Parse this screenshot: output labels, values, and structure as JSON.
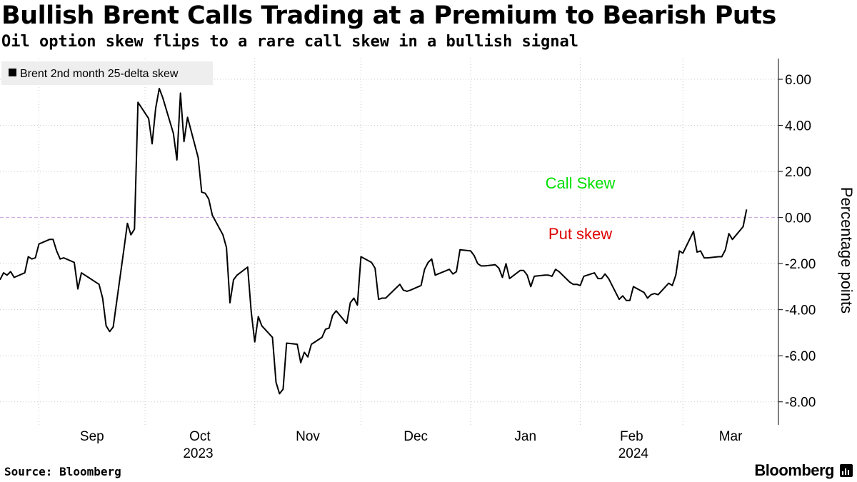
{
  "header": {
    "title": "Bullish Brent Calls Trading at a Premium to Bearish Puts",
    "subtitle": "Oil option skew flips to a rare call skew in a bullish signal"
  },
  "footer": {
    "source": "Source: Bloomberg",
    "brand": "Bloomberg"
  },
  "colors": {
    "line": "#000000",
    "grid": "#c8c8c8",
    "zero_line": "#c9a0dc",
    "call_label": "#00e000",
    "put_label": "#e00000",
    "legend_bg": "#eeeeee"
  },
  "chart_data": {
    "type": "line",
    "title": "Bullish Brent Calls Trading at a Premium to Bearish Puts",
    "subtitle": "Oil option skew flips to a rare call skew in a bullish signal",
    "ylabel": "Percentage points",
    "xlabel": "",
    "legend": "Brent 2nd month 25-delta skew",
    "legend_position": "top-left",
    "y_axis_side": "right",
    "ylim": [
      -9.0,
      6.9
    ],
    "y_ticks": [
      6,
      4,
      2,
      0,
      -2,
      -4,
      -6,
      -8
    ],
    "y_tick_labels": [
      "6.00",
      "4.00",
      "2.00",
      "0.00",
      "-2.00",
      "-4.00",
      "-6.00",
      "-8.00"
    ],
    "grid": true,
    "x_range": [
      "2023-08-21",
      "2024-03-28"
    ],
    "x_tick_labels": [
      {
        "date": "2023-09-01",
        "label": "Sep"
      },
      {
        "date": "2023-10-01",
        "label": "Oct"
      },
      {
        "date": "2023-11-01",
        "label": "Nov"
      },
      {
        "date": "2023-12-01",
        "label": "Dec"
      },
      {
        "date": "2024-01-01",
        "label": "Jan"
      },
      {
        "date": "2024-02-01",
        "label": "Feb"
      },
      {
        "date": "2024-03-01",
        "label": "Mar"
      }
    ],
    "year_labels": [
      {
        "date": "2023-10-16",
        "label": "2023"
      },
      {
        "date": "2024-02-16",
        "label": "2024"
      }
    ],
    "annotations": [
      {
        "text": "Call Skew",
        "date": "2024-02-01",
        "y": 1.5,
        "color": "#00e000"
      },
      {
        "text": "Put skew",
        "date": "2024-02-01",
        "y": -0.7,
        "color": "#e00000"
      }
    ],
    "series": [
      {
        "name": "Brent 2nd month 25-delta skew",
        "points": [
          [
            "2023-08-21",
            -2.7
          ],
          [
            "2023-08-22",
            -2.4
          ],
          [
            "2023-08-23",
            -2.5
          ],
          [
            "2023-08-24",
            -2.35
          ],
          [
            "2023-08-25",
            -2.6
          ],
          [
            "2023-08-28",
            -2.4
          ],
          [
            "2023-08-29",
            -1.7
          ],
          [
            "2023-08-30",
            -1.8
          ],
          [
            "2023-08-31",
            -1.75
          ],
          [
            "2023-09-01",
            -1.15
          ],
          [
            "2023-09-04",
            -0.95
          ],
          [
            "2023-09-05",
            -0.95
          ],
          [
            "2023-09-06",
            -1.45
          ],
          [
            "2023-09-07",
            -1.8
          ],
          [
            "2023-09-08",
            -1.75
          ],
          [
            "2023-09-11",
            -1.95
          ],
          [
            "2023-09-12",
            -3.1
          ],
          [
            "2023-09-13",
            -2.4
          ],
          [
            "2023-09-14",
            -2.5
          ],
          [
            "2023-09-15",
            -2.6
          ],
          [
            "2023-09-18",
            -2.9
          ],
          [
            "2023-09-19",
            -3.5
          ],
          [
            "2023-09-20",
            -4.7
          ],
          [
            "2023-09-21",
            -4.95
          ],
          [
            "2023-09-22",
            -4.75
          ],
          [
            "2023-09-25",
            -1.4
          ],
          [
            "2023-09-26",
            -0.25
          ],
          [
            "2023-09-27",
            -0.75
          ],
          [
            "2023-09-28",
            -0.5
          ],
          [
            "2023-09-29",
            5.0
          ],
          [
            "2023-10-02",
            4.3
          ],
          [
            "2023-10-03",
            3.2
          ],
          [
            "2023-10-04",
            4.75
          ],
          [
            "2023-10-05",
            5.6
          ],
          [
            "2023-10-06",
            5.2
          ],
          [
            "2023-10-09",
            3.65
          ],
          [
            "2023-10-10",
            2.5
          ],
          [
            "2023-10-11",
            5.4
          ],
          [
            "2023-10-12",
            3.3
          ],
          [
            "2023-10-13",
            4.35
          ],
          [
            "2023-10-16",
            2.6
          ],
          [
            "2023-10-17",
            1.1
          ],
          [
            "2023-10-18",
            1.05
          ],
          [
            "2023-10-19",
            0.8
          ],
          [
            "2023-10-20",
            0.1
          ],
          [
            "2023-10-23",
            -0.75
          ],
          [
            "2023-10-24",
            -1.3
          ],
          [
            "2023-10-25",
            -3.7
          ],
          [
            "2023-10-26",
            -2.7
          ],
          [
            "2023-10-27",
            -2.5
          ],
          [
            "2023-10-30",
            -2.15
          ],
          [
            "2023-10-31",
            -4.1
          ],
          [
            "2023-11-01",
            -5.4
          ],
          [
            "2023-11-02",
            -4.3
          ],
          [
            "2023-11-03",
            -4.7
          ],
          [
            "2023-11-06",
            -5.2
          ],
          [
            "2023-11-07",
            -7.15
          ],
          [
            "2023-11-08",
            -7.65
          ],
          [
            "2023-11-09",
            -7.45
          ],
          [
            "2023-11-10",
            -5.45
          ],
          [
            "2023-11-13",
            -5.5
          ],
          [
            "2023-11-14",
            -6.3
          ],
          [
            "2023-11-15",
            -5.85
          ],
          [
            "2023-11-16",
            -6.05
          ],
          [
            "2023-11-17",
            -5.5
          ],
          [
            "2023-11-20",
            -5.2
          ],
          [
            "2023-11-21",
            -4.85
          ],
          [
            "2023-11-22",
            -4.8
          ],
          [
            "2023-11-23",
            -4.25
          ],
          [
            "2023-11-24",
            -4.05
          ],
          [
            "2023-11-27",
            -4.6
          ],
          [
            "2023-11-28",
            -3.7
          ],
          [
            "2023-11-29",
            -3.5
          ],
          [
            "2023-11-30",
            -3.8
          ],
          [
            "2023-12-01",
            -1.7
          ],
          [
            "2023-12-04",
            -1.95
          ],
          [
            "2023-12-05",
            -2.2
          ],
          [
            "2023-12-06",
            -3.55
          ],
          [
            "2023-12-07",
            -3.5
          ],
          [
            "2023-12-08",
            -3.5
          ],
          [
            "2023-12-11",
            -3.05
          ],
          [
            "2023-12-12",
            -2.9
          ],
          [
            "2023-12-13",
            -3.15
          ],
          [
            "2023-12-14",
            -3.2
          ],
          [
            "2023-12-15",
            -3.15
          ],
          [
            "2023-12-18",
            -2.95
          ],
          [
            "2023-12-19",
            -2.25
          ],
          [
            "2023-12-20",
            -1.95
          ],
          [
            "2023-12-21",
            -1.8
          ],
          [
            "2023-12-22",
            -2.5
          ],
          [
            "2023-12-26",
            -2.25
          ],
          [
            "2023-12-27",
            -2.45
          ],
          [
            "2023-12-28",
            -2.35
          ],
          [
            "2023-12-29",
            -1.4
          ],
          [
            "2024-01-01",
            -1.45
          ],
          [
            "2024-01-02",
            -1.65
          ],
          [
            "2024-01-03",
            -2.0
          ],
          [
            "2024-01-04",
            -2.1
          ],
          [
            "2024-01-05",
            -2.1
          ],
          [
            "2024-01-08",
            -2.05
          ],
          [
            "2024-01-09",
            -2.2
          ],
          [
            "2024-01-10",
            -2.6
          ],
          [
            "2024-01-11",
            -2.0
          ],
          [
            "2024-01-12",
            -2.65
          ],
          [
            "2024-01-15",
            -2.3
          ],
          [
            "2024-01-16",
            -2.3
          ],
          [
            "2024-01-17",
            -2.5
          ],
          [
            "2024-01-18",
            -3.0
          ],
          [
            "2024-01-19",
            -2.55
          ],
          [
            "2024-01-22",
            -2.5
          ],
          [
            "2024-01-23",
            -2.5
          ],
          [
            "2024-01-24",
            -2.55
          ],
          [
            "2024-01-25",
            -2.25
          ],
          [
            "2024-01-26",
            -2.35
          ],
          [
            "2024-01-29",
            -2.8
          ],
          [
            "2024-01-30",
            -2.9
          ],
          [
            "2024-01-31",
            -2.9
          ],
          [
            "2024-02-01",
            -2.95
          ],
          [
            "2024-02-02",
            -2.55
          ],
          [
            "2024-02-05",
            -2.4
          ],
          [
            "2024-02-06",
            -2.65
          ],
          [
            "2024-02-07",
            -2.65
          ],
          [
            "2024-02-08",
            -2.45
          ],
          [
            "2024-02-09",
            -2.65
          ],
          [
            "2024-02-12",
            -3.55
          ],
          [
            "2024-02-13",
            -3.4
          ],
          [
            "2024-02-14",
            -3.6
          ],
          [
            "2024-02-15",
            -3.6
          ],
          [
            "2024-02-16",
            -3.0
          ],
          [
            "2024-02-19",
            -3.25
          ],
          [
            "2024-02-20",
            -3.5
          ],
          [
            "2024-02-21",
            -3.35
          ],
          [
            "2024-02-22",
            -3.3
          ],
          [
            "2024-02-23",
            -3.35
          ],
          [
            "2024-02-26",
            -2.85
          ],
          [
            "2024-02-27",
            -2.95
          ],
          [
            "2024-02-28",
            -2.5
          ],
          [
            "2024-02-29",
            -1.45
          ],
          [
            "2024-03-01",
            -1.55
          ],
          [
            "2024-03-04",
            -0.6
          ],
          [
            "2024-03-05",
            -1.5
          ],
          [
            "2024-03-06",
            -1.45
          ],
          [
            "2024-03-07",
            -1.75
          ],
          [
            "2024-03-08",
            -1.75
          ],
          [
            "2024-03-11",
            -1.7
          ],
          [
            "2024-03-12",
            -1.7
          ],
          [
            "2024-03-13",
            -1.4
          ],
          [
            "2024-03-14",
            -0.7
          ],
          [
            "2024-03-15",
            -0.95
          ],
          [
            "2024-03-18",
            -0.4
          ],
          [
            "2024-03-19",
            0.35
          ]
        ]
      }
    ]
  }
}
